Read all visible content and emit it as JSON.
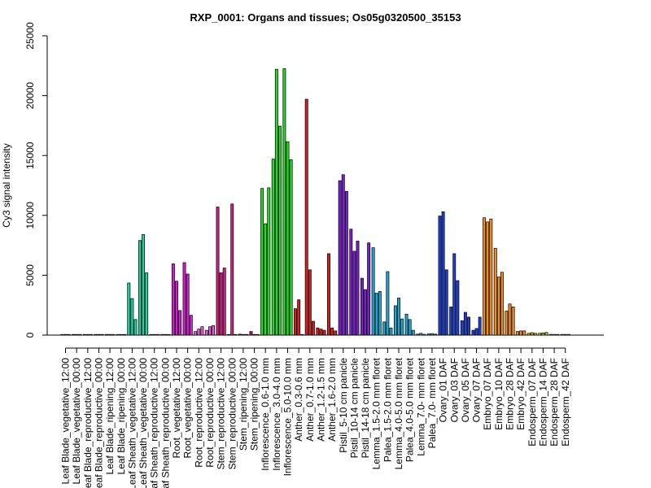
{
  "chart_data": {
    "type": "bar",
    "title": "RXP_0001: Organs and tissues; Os05g0320500_35153",
    "xlabel": "",
    "ylabel": "Cy3 signal intensity",
    "ylim": [
      0,
      25000
    ],
    "yticks": [
      0,
      5000,
      10000,
      15000,
      20000,
      25000
    ],
    "grid": false,
    "legend": "none",
    "categories": [
      "Leaf Blade_vegetative_12:00",
      "Leaf Blade_vegetative_00:00",
      "Leaf Blade_reproductive_12:00",
      "Leaf Blade_reproductive_00:00",
      "Leaf Blade_ripening_12:00",
      "Leaf Blade_ripening_00:00",
      "Leaf Sheath_vegetative_12:00",
      "Leaf Sheath_vegetative_00:00",
      "Leaf Sheath_reproductive_12:00",
      "Leaf Sheath_reproductive_00:00",
      "Root_vegetative_12:00",
      "Root_vegetative_00:00",
      "Root_reproductive_12:00",
      "Root_reproductive_00:00",
      "Stem_reproductive_12:00",
      "Stem_reproductive_00:00",
      "Stem_ripening_12:00",
      "Stem_ripening_00:00",
      "Inflorescence_0.6-1.0 mm",
      "Inflorescence_3.0-4.0 mm",
      "Inflorescence_5.0-10.0 mm",
      "Anther_0.3-0.6 mm",
      "Anther_0.7-1.0 mm",
      "Anther_1.2-1.5 mm",
      "Anther_1.6-2.0 mm",
      "Pistil_5-10 cm panicle",
      "Pistil_10-14 cm panicle",
      "Pistil_14-18 cm panicle",
      "Lemma_1.5-2.0 mm floret",
      "Palea_1.5-2.0 mm floret",
      "Lemma_4.0-5.0 mm floret",
      "Palea_4.0-5.0 mm floret",
      "Lemma_7.0- mm floret",
      "Palea_7.0- mm floret",
      "Ovary_01 DAF",
      "Ovary_03 DAF",
      "Ovary_05 DAF",
      "Ovary_07 DAF",
      "Embryo_07 DAF",
      "Embryo_10 DAF",
      "Embryo_28 DAF",
      "Embryo_42 DAF",
      "Endosperm_07 DAF",
      "Endosperm_14 DAF",
      "Endosperm_28 DAF",
      "Endosperm_42 DAF"
    ],
    "groups": [
      {
        "categories": [
          0,
          1,
          2,
          3,
          4,
          5
        ],
        "color": "#2e8b57",
        "values": [
          [
            30,
            20,
            30
          ],
          [
            30,
            20,
            30
          ],
          [
            30,
            20,
            30
          ],
          [
            30,
            20,
            30
          ],
          [
            30,
            20,
            30
          ],
          [
            30,
            20,
            30
          ]
        ]
      },
      {
        "categories": [
          6,
          7
        ],
        "color": "#1fd2a0",
        "values": [
          [
            4350,
            3050,
            1300
          ],
          [
            7900,
            8400,
            5200
          ]
        ]
      },
      {
        "categories": [
          8,
          9
        ],
        "color": "#17a27c",
        "values": [
          [
            30,
            20,
            30
          ],
          [
            30,
            20,
            30
          ]
        ]
      },
      {
        "categories": [
          10,
          11
        ],
        "color": "#d21fd2",
        "values": [
          [
            5950,
            4500,
            2050
          ],
          [
            6050,
            5100,
            1650
          ]
        ]
      },
      {
        "categories": [
          12,
          13
        ],
        "color": "#e060d0",
        "values": [
          [
            300,
            500,
            700
          ],
          [
            400,
            700,
            800
          ]
        ]
      },
      {
        "categories": [
          14,
          15
        ],
        "color": "#d21f84",
        "values": [
          [
            10700,
            5200,
            5600
          ],
          [
            50,
            10950,
            50
          ]
        ]
      },
      {
        "categories": [
          16,
          17
        ],
        "color": "#a01a6a",
        "values": [
          [
            80,
            20,
            30
          ],
          [
            300,
            20,
            30
          ]
        ]
      },
      {
        "categories": [
          18,
          19,
          20
        ],
        "color": "#22dd22",
        "values": [
          [
            12250,
            9300,
            12300
          ],
          [
            14700,
            22200,
            17450
          ],
          [
            22250,
            16150,
            14650
          ]
        ]
      },
      {
        "categories": [
          21,
          22,
          23,
          24
        ],
        "color": "#d21f1f",
        "values": [
          [
            2200,
            2950,
            0
          ],
          [
            19700,
            5450,
            1150
          ],
          [
            600,
            500,
            400
          ],
          [
            6800,
            600,
            350
          ]
        ]
      },
      {
        "categories": [
          25,
          26,
          27
        ],
        "color": "#7a1fd2",
        "values": [
          [
            12900,
            13400,
            12000
          ],
          [
            8850,
            7000,
            7850
          ],
          [
            4750,
            3800,
            7700
          ]
        ]
      },
      {
        "categories": [
          28,
          29,
          30,
          31,
          32,
          33
        ],
        "color": "#1fa7d2",
        "values": [
          [
            7300,
            3500,
            3650
          ],
          [
            1100,
            5300,
            600
          ],
          [
            2450,
            3100,
            1350
          ],
          [
            1750,
            1300,
            400
          ],
          [
            80,
            150,
            60
          ],
          [
            100,
            120,
            80
          ]
        ]
      },
      {
        "categories": [
          34,
          35,
          36,
          37
        ],
        "color": "#1f3fd2",
        "values": [
          [
            9950,
            10300,
            5450
          ],
          [
            2350,
            6800,
            4550
          ],
          [
            1200,
            1900,
            1500
          ],
          [
            400,
            550,
            1500
          ]
        ]
      },
      {
        "categories": [
          38,
          39,
          40,
          41
        ],
        "color": "#f08c28",
        "values": [
          [
            9800,
            9450,
            9700
          ],
          [
            7250,
            4850,
            5250
          ],
          [
            2000,
            2600,
            2350
          ],
          [
            300,
            350,
            350
          ]
        ]
      },
      {
        "categories": [
          42,
          43,
          44,
          45
        ],
        "color": "#d2b41f",
        "values": [
          [
            150,
            200,
            150
          ],
          [
            150,
            180,
            220
          ],
          [
            60,
            40,
            50
          ],
          [
            30,
            20,
            30
          ]
        ]
      }
    ]
  }
}
